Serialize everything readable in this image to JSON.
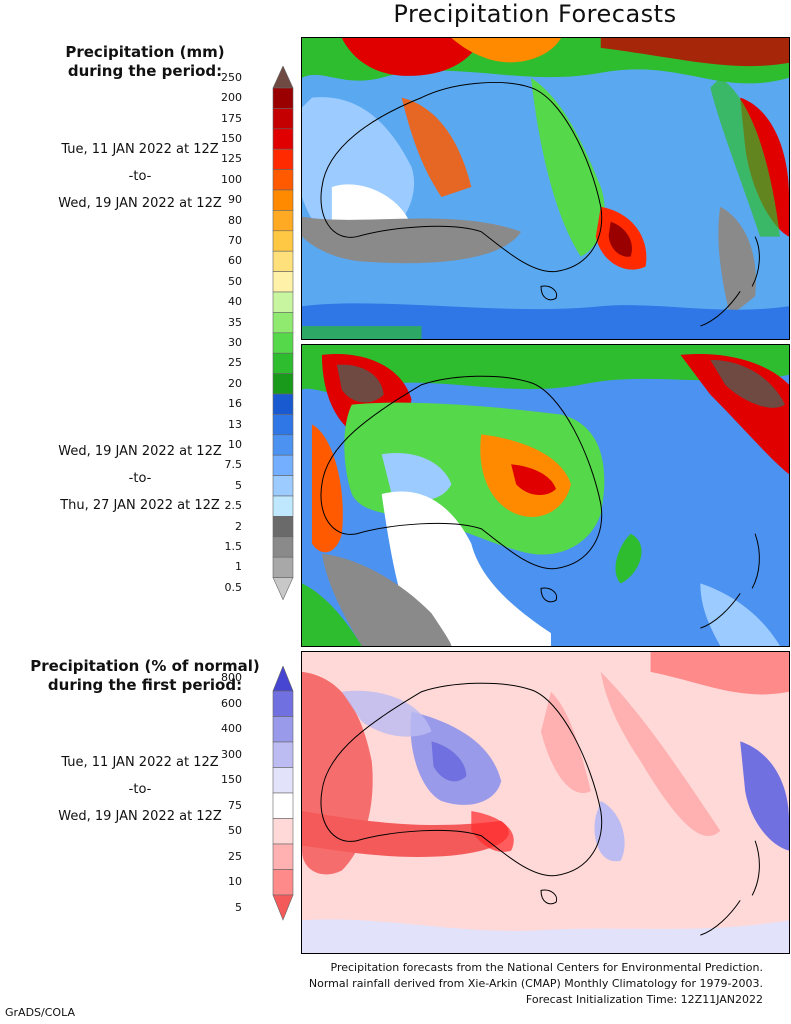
{
  "title": "Precipitation Forecasts",
  "amount_header": [
    "Precipitation (mm)",
    "during the period:"
  ],
  "period1": {
    "start": "Tue, 11 JAN 2022 at 12Z",
    "sep": "-to-",
    "end": "Wed, 19 JAN 2022 at 12Z"
  },
  "period2": {
    "start": "Wed, 19 JAN 2022 at 12Z",
    "sep": "-to-",
    "end": "Thu, 27 JAN 2022 at 12Z"
  },
  "anomaly_header": [
    "Precipitation (% of normal)",
    "during the first period:"
  ],
  "period3": {
    "start": "Tue, 11 JAN 2022 at 12Z",
    "sep": "-to-",
    "end": "Wed, 19 JAN 2022 at 12Z"
  },
  "precip_scale": {
    "labels": [
      "250",
      "200",
      "175",
      "150",
      "125",
      "100",
      "90",
      "80",
      "70",
      "60",
      "50",
      "40",
      "35",
      "30",
      "25",
      "20",
      "16",
      "13",
      "10",
      "7.5",
      "5",
      "2.5",
      "2",
      "1.5",
      "1",
      "0.5"
    ],
    "colors": [
      "#6e4a42",
      "#9a0000",
      "#c40000",
      "#e00000",
      "#ff2a00",
      "#ff5a00",
      "#ff8a00",
      "#ffaa22",
      "#ffc844",
      "#ffe07a",
      "#fff2a8",
      "#c8f5a0",
      "#90ea70",
      "#55d84a",
      "#2ebd2e",
      "#1a9a1a",
      "#1a5ad0",
      "#2f76e6",
      "#4c92f0",
      "#74afff",
      "#9ccbff",
      "#bfe8ff",
      "#6a6a6a",
      "#8a8a8a",
      "#a8a8a8",
      "#c8c8c8"
    ]
  },
  "anomaly_scale": {
    "labels": [
      "800",
      "600",
      "400",
      "300",
      "150",
      "75",
      "50",
      "25",
      "10",
      "5"
    ],
    "colors": [
      "#4646d2",
      "#7070e0",
      "#9a9aea",
      "#bcbcf2",
      "#e2e2fa",
      "#ffffff",
      "#ffd8d8",
      "#ffb0b0",
      "#ff8a8a",
      "#f55a5a"
    ]
  },
  "footer": [
    "Precipitation forecasts from the National Centers for Environmental Prediction.",
    "Normal rainfall derived from Xie-Arkin (CMAP) Monthly Climatology for 1979-2003.",
    "Forecast Initialization Time: 12Z11JAN2022"
  ],
  "credit": "GrADS/COLA"
}
